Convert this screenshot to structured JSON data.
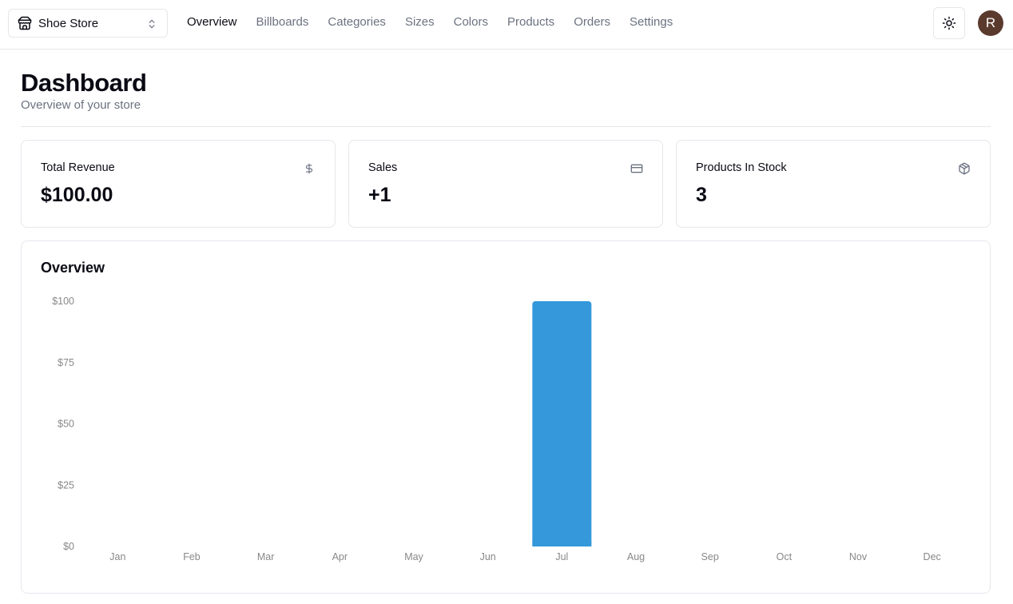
{
  "store": {
    "name": "Shoe Store",
    "icon": "store-icon",
    "chevron": "chevrons-up-down-icon"
  },
  "nav": {
    "items": [
      {
        "label": "Overview",
        "active": true
      },
      {
        "label": "Billboards",
        "active": false
      },
      {
        "label": "Categories",
        "active": false
      },
      {
        "label": "Sizes",
        "active": false
      },
      {
        "label": "Colors",
        "active": false
      },
      {
        "label": "Products",
        "active": false
      },
      {
        "label": "Orders",
        "active": false
      },
      {
        "label": "Settings",
        "active": false
      }
    ]
  },
  "theme_toggle": {
    "icon": "sun-icon"
  },
  "user": {
    "avatar_initial": "R",
    "avatar_color": "#5b3a2e"
  },
  "header": {
    "title": "Dashboard",
    "subtitle": "Overview of your store"
  },
  "stats": [
    {
      "label": "Total Revenue",
      "value": "$100.00",
      "icon": "dollar-sign-icon"
    },
    {
      "label": "Sales",
      "value": "+1",
      "icon": "credit-card-icon"
    },
    {
      "label": "Products In Stock",
      "value": "3",
      "icon": "package-icon"
    }
  ],
  "overview": {
    "title": "Overview"
  },
  "chart_data": {
    "type": "bar",
    "categories": [
      "Jan",
      "Feb",
      "Mar",
      "Apr",
      "May",
      "Jun",
      "Jul",
      "Aug",
      "Sep",
      "Oct",
      "Nov",
      "Dec"
    ],
    "values": [
      0,
      0,
      0,
      0,
      0,
      0,
      100,
      0,
      0,
      0,
      0,
      0
    ],
    "ylim": [
      0,
      100
    ],
    "yticks": [
      0,
      25,
      50,
      75,
      100
    ],
    "ytick_labels": [
      "$0",
      "$25",
      "$50",
      "$75",
      "$100"
    ],
    "bar_color": "#3498db",
    "grid": false
  },
  "colors": {
    "accent": "#3498db",
    "muted_text": "#6b7280",
    "border": "#e5e7eb"
  }
}
